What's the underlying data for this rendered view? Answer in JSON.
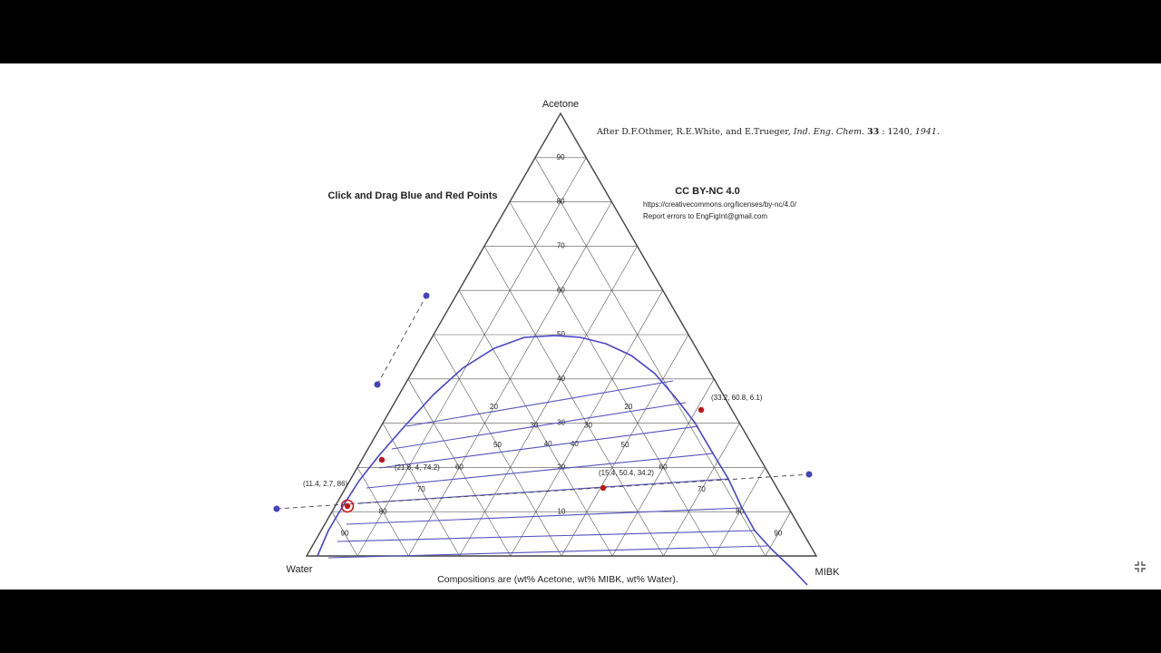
{
  "vertices": {
    "top": "Acetone",
    "left": "Water",
    "right": "MIBK"
  },
  "ticks": [
    "10",
    "20",
    "30",
    "40",
    "50",
    "60",
    "70",
    "80",
    "90"
  ],
  "instruction": "Click and Drag Blue and Red Points",
  "credit": {
    "prefix": "After D.F.Othmer, R.E.White, and E.Trueger, ",
    "journal": "Ind. Eng. Chem.",
    "volume": "33",
    "pages": ": 1240, ",
    "year": "1941."
  },
  "license": {
    "title": "CC BY-NC 4.0",
    "url": "https://creativecommons.org/licenses/by-nc/4.0/",
    "report": "Report errors to EngFigInt@gmail.com"
  },
  "points": [
    {
      "label": "(11.4, 2.7, 86)",
      "acetone": 11.4,
      "mibk": 2.7,
      "water": 86
    },
    {
      "label": "(21.8, 4, 74.2)",
      "acetone": 21.8,
      "mibk": 4,
      "water": 74.2
    },
    {
      "label": "(15.4, 50.4, 34.2)",
      "acetone": 15.4,
      "mibk": 50.4,
      "water": 34.2
    },
    {
      "label": "(33.2, 60.8, 6.1)",
      "acetone": 33.2,
      "mibk": 60.8,
      "water": 6.1
    }
  ],
  "footer": "Compositions are (wt% Acetone, wt% MIBK, wt% Water).",
  "colors": {
    "curve": "#4a44c8",
    "tie": "#5650c0",
    "red": "#c01818",
    "blue": "#4444bb",
    "grid": "#555555"
  }
}
